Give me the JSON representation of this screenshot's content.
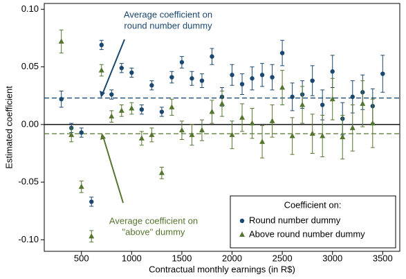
{
  "chart_data": {
    "type": "errorbar-scatter",
    "xlabel": "Contractual monthly earnings (in R$)",
    "ylabel": "Estimated coefficient",
    "xlim": [
      130,
      3670
    ],
    "ylim": [
      -0.11,
      0.105
    ],
    "xticks": [
      500,
      1000,
      1500,
      2000,
      2500,
      3000,
      3500
    ],
    "yticks": [
      {
        "value": 0.1,
        "label": "0.10"
      },
      {
        "value": 0.05,
        "label": "0.05"
      },
      {
        "value": 0,
        "label": "0.00"
      },
      {
        "value": -0.05,
        "label": "-0.05"
      },
      {
        "value": -0.1,
        "label": "-0.10"
      }
    ],
    "hlines": [
      {
        "value": 0,
        "color": "#000000",
        "dashed": false
      },
      {
        "value": 0.023,
        "color": "#1a476f",
        "dashed": true
      },
      {
        "value": -0.008,
        "color": "#55752f",
        "dashed": true
      }
    ],
    "annotations": [
      {
        "lines": [
          "Average coefficient on",
          "round number dummy"
        ],
        "color": "#1a476f"
      },
      {
        "lines": [
          "Average coefficient on",
          "\"above\" dummy"
        ],
        "color": "#55752f"
      }
    ],
    "legend_title": "Coefficient on:",
    "legend_position": "lower right",
    "series": [
      {
        "name": "Round number dummy",
        "color": "#1a476f",
        "marker": "circle",
        "x": [
          300,
          400,
          500,
          600,
          700,
          800,
          900,
          1000,
          1100,
          1200,
          1300,
          1400,
          1500,
          1600,
          1700,
          1800,
          1900,
          2000,
          2100,
          2200,
          2300,
          2400,
          2500,
          2600,
          2700,
          2800,
          2900,
          3000,
          3100,
          3200,
          3300,
          3400,
          3500
        ],
        "values": [
          0.022,
          -0.003,
          -0.007,
          -0.067,
          0.069,
          0.026,
          0.049,
          0.045,
          0.013,
          0.034,
          0.011,
          0.041,
          0.054,
          0.04,
          0.038,
          0.059,
          0.024,
          0.043,
          0.035,
          0.04,
          0.043,
          0.041,
          0.062,
          0.024,
          0.026,
          0.038,
          0.017,
          0.046,
          0.005,
          0.024,
          0.028,
          0.016,
          0.044
        ],
        "errors": [
          0.007,
          0.004,
          0.004,
          0.004,
          0.004,
          0.004,
          0.004,
          0.004,
          0.004,
          0.004,
          0.004,
          0.005,
          0.005,
          0.006,
          0.006,
          0.007,
          0.008,
          0.009,
          0.009,
          0.01,
          0.01,
          0.011,
          0.011,
          0.012,
          0.012,
          0.013,
          0.013,
          0.014,
          0.014,
          0.014,
          0.015,
          0.015,
          0.016
        ]
      },
      {
        "name": "Above round number dummy",
        "color": "#55752f",
        "marker": "triangle",
        "x": [
          300,
          400,
          500,
          600,
          700,
          800,
          900,
          1000,
          1100,
          1200,
          1300,
          1400,
          1500,
          1600,
          1700,
          1800,
          1900,
          2000,
          2100,
          2200,
          2300,
          2400,
          2500,
          2600,
          2700,
          2800,
          2900,
          3000,
          3100,
          3200,
          3300,
          3400
        ],
        "values": [
          0.072,
          -0.009,
          -0.054,
          -0.097,
          0.047,
          0.007,
          0.012,
          0.014,
          -0.012,
          -0.009,
          -0.042,
          0.015,
          -0.005,
          -0.009,
          -0.005,
          0.011,
          0.018,
          -0.009,
          0.006,
          0.001,
          -0.015,
          0.003,
          0.032,
          -0.01,
          0.017,
          -0.008,
          -0.01,
          0.022,
          -0.011,
          -0.003,
          0.018,
          0.001
        ],
        "errors": [
          0.01,
          0.006,
          0.005,
          0.005,
          0.005,
          0.005,
          0.005,
          0.005,
          0.006,
          0.006,
          0.005,
          0.007,
          0.008,
          0.009,
          0.009,
          0.01,
          0.011,
          0.012,
          0.012,
          0.013,
          0.014,
          0.014,
          0.015,
          0.016,
          0.016,
          0.017,
          0.018,
          0.018,
          0.019,
          0.02,
          0.02,
          0.021
        ]
      }
    ]
  }
}
